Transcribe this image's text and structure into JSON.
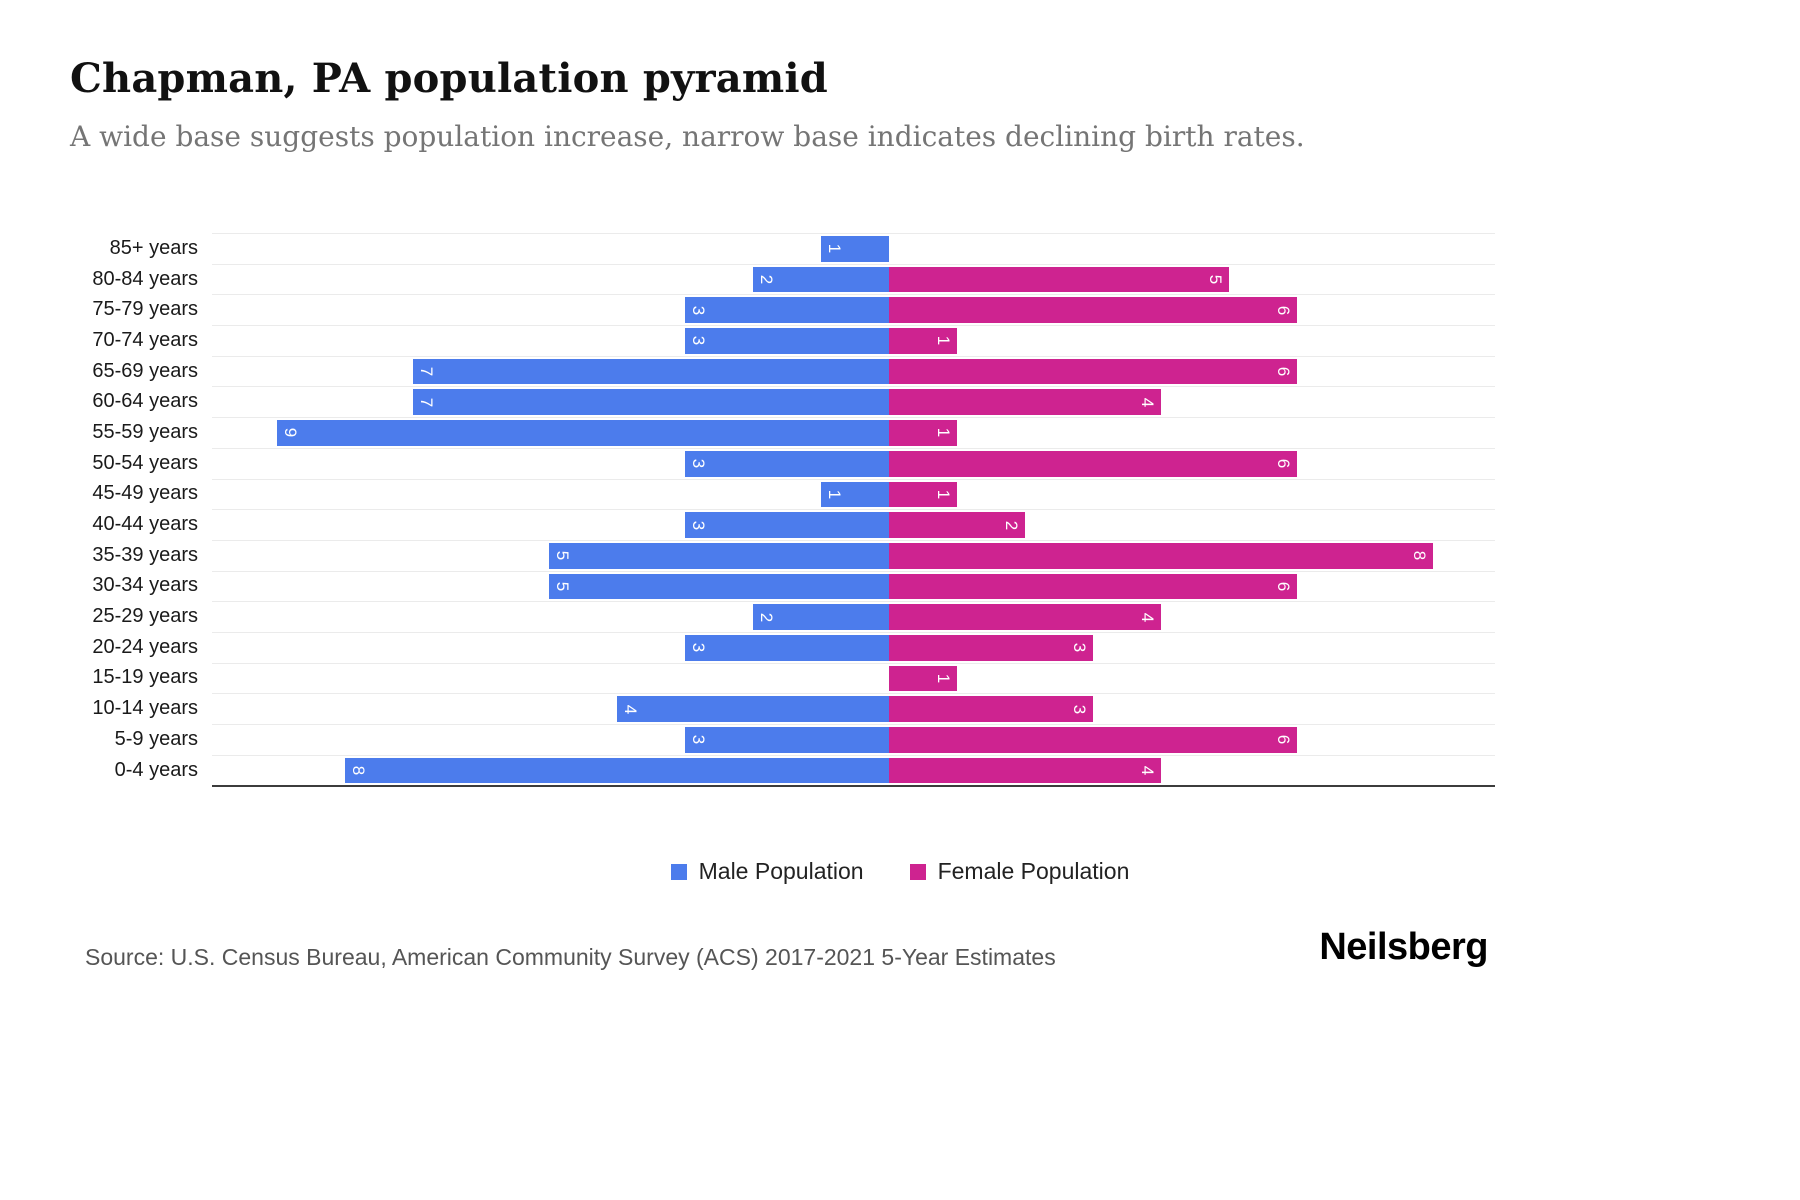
{
  "title": "Chapman, PA population pyramid",
  "subtitle": "A wide base suggests population increase, narrow base indicates declining birth rates.",
  "source": "Source: U.S. Census Bureau, American Community Survey (ACS) 2017-2021 5-Year Estimates",
  "logo": "Neilsberg",
  "legend": {
    "male_label": "Male Population",
    "female_label": "Female Population"
  },
  "colors": {
    "male": "#4C7CEC",
    "female": "#CE2390"
  },
  "chart_data": {
    "type": "bar",
    "variant": "population-pyramid",
    "orientation": "horizontal",
    "title": "Chapman, PA population pyramid",
    "categories": [
      "85+ years",
      "80-84 years",
      "75-79 years",
      "70-74 years",
      "65-69 years",
      "60-64 years",
      "55-59 years",
      "50-54 years",
      "45-49 years",
      "40-44 years",
      "35-39 years",
      "30-34 years",
      "25-29 years",
      "20-24 years",
      "15-19 years",
      "10-14 years",
      "5-9 years",
      "0-4 years"
    ],
    "series": [
      {
        "name": "Male Population",
        "side": "left",
        "values": [
          1,
          2,
          3,
          3,
          7,
          7,
          9,
          3,
          1,
          3,
          5,
          5,
          2,
          3,
          0,
          4,
          3,
          8
        ]
      },
      {
        "name": "Female Population",
        "side": "right",
        "values": [
          0,
          5,
          6,
          1,
          6,
          4,
          1,
          6,
          1,
          2,
          8,
          6,
          4,
          3,
          1,
          3,
          6,
          4
        ]
      }
    ],
    "value_labels": "inside-end, rotated 90deg, white",
    "axis_max_male": 9,
    "axis_max_female": 8,
    "grid": "horizontal light gridlines per row, dark bottom axis line",
    "legend_position": "bottom-center"
  }
}
